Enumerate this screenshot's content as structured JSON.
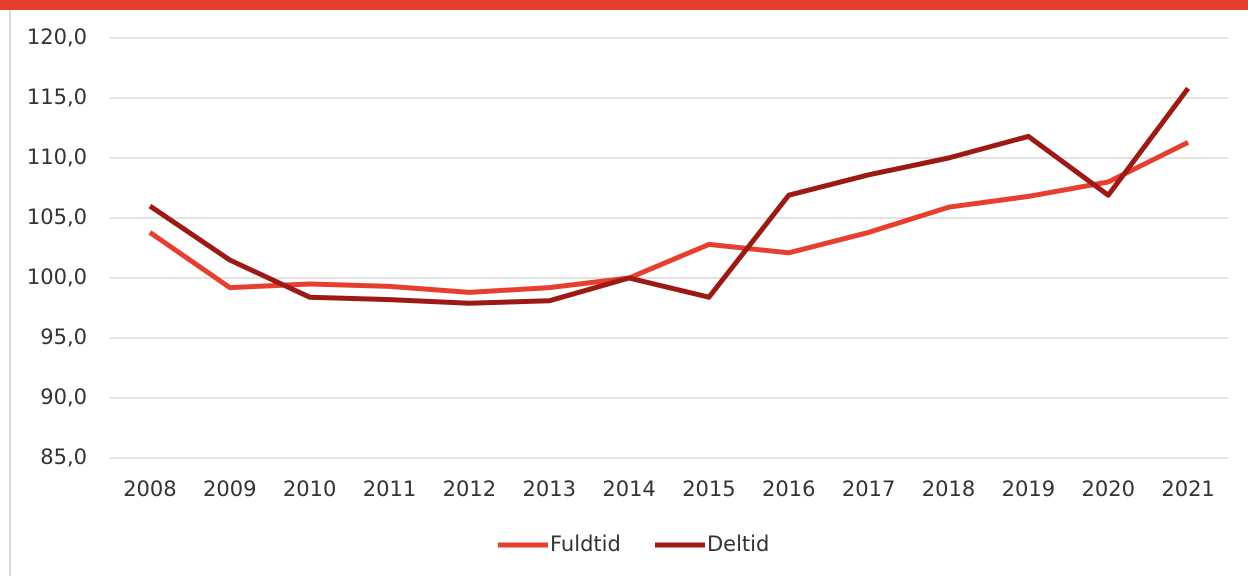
{
  "chart_data": {
    "type": "line",
    "categories": [
      "2008",
      "2009",
      "2010",
      "2011",
      "2012",
      "2013",
      "2014",
      "2015",
      "2016",
      "2017",
      "2018",
      "2019",
      "2020",
      "2021"
    ],
    "series": [
      {
        "name": "Fuldtid",
        "color": "#e63f30",
        "values": [
          103.8,
          99.2,
          99.5,
          99.3,
          98.8,
          99.2,
          100.0,
          102.8,
          102.1,
          103.8,
          105.9,
          106.8,
          108.0,
          111.3
        ]
      },
      {
        "name": "Deltid",
        "color": "#9c1a13",
        "values": [
          106.0,
          101.5,
          98.4,
          98.2,
          97.9,
          98.1,
          100.0,
          98.4,
          106.9,
          108.6,
          110.0,
          111.8,
          106.9,
          115.8
        ]
      }
    ],
    "ylim": [
      85,
      120
    ],
    "yticks": [
      {
        "value": 85,
        "label": "85,0"
      },
      {
        "value": 90,
        "label": "90,0"
      },
      {
        "value": 95,
        "label": "95,0"
      },
      {
        "value": 100,
        "label": "100,0"
      },
      {
        "value": 105,
        "label": "105,0"
      },
      {
        "value": 110,
        "label": "110,0"
      },
      {
        "value": 115,
        "label": "115,0"
      },
      {
        "value": 120,
        "label": "120,0"
      }
    ],
    "grid": true,
    "legend": "bottom"
  }
}
